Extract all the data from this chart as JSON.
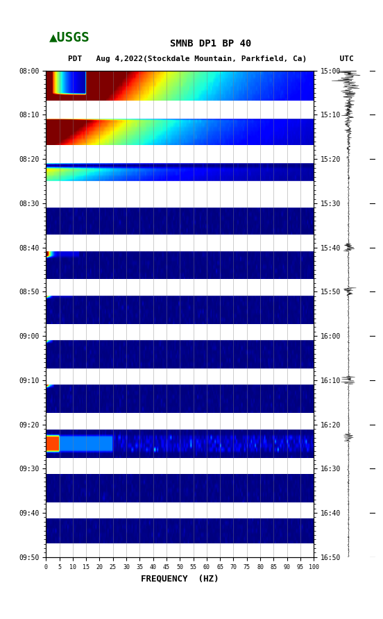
{
  "title_line1": "SMNB DP1 BP 40",
  "title_line2": "PDT   Aug 4,2022(Stockdale Mountain, Parkfield, Ca)       UTC",
  "xlabel": "FREQUENCY  (HZ)",
  "freq_min": 0,
  "freq_max": 100,
  "freq_ticks": [
    0,
    5,
    10,
    15,
    20,
    25,
    30,
    35,
    40,
    45,
    50,
    55,
    60,
    65,
    70,
    75,
    80,
    85,
    90,
    95,
    100
  ],
  "pdt_times": [
    "08:00",
    "08:10",
    "08:20",
    "08:30",
    "08:40",
    "08:50",
    "09:00",
    "09:10",
    "09:20",
    "09:30",
    "09:40",
    "09:50"
  ],
  "utc_times": [
    "15:00",
    "15:10",
    "15:20",
    "15:30",
    "15:40",
    "15:50",
    "16:00",
    "16:10",
    "16:20",
    "16:30",
    "16:40",
    "16:50"
  ],
  "background_color": "#ffffff",
  "spectrogram_bg": "#0000aa",
  "gap_color": "#ffffff",
  "title_fontsize": 10,
  "tick_fontsize": 8,
  "label_fontsize": 9
}
